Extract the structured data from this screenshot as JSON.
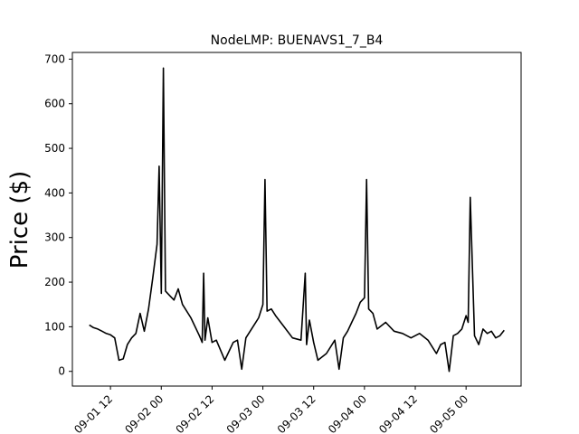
{
  "chart_data": {
    "type": "line",
    "title": "NodeLMP: BUENAVS1_7_B4",
    "xlabel": "",
    "ylabel": "Price ($)",
    "ylim": [
      -33,
      715
    ],
    "xlim": [
      "2019-09-01 03:00",
      "2019-09-05 13:00"
    ],
    "yticks": [
      0,
      100,
      200,
      300,
      400,
      500,
      600,
      700
    ],
    "xticks": [
      {
        "at": "2019-09-01 12:00",
        "label": "09-01 12"
      },
      {
        "at": "2019-09-02 00:00",
        "label": "09-02 00"
      },
      {
        "at": "2019-09-02 12:00",
        "label": "09-02 12"
      },
      {
        "at": "2019-09-03 00:00",
        "label": "09-03 00"
      },
      {
        "at": "2019-09-03 12:00",
        "label": "09-03 12"
      },
      {
        "at": "2019-09-04 00:00",
        "label": "09-04 00"
      },
      {
        "at": "2019-09-04 12:00",
        "label": "09-04 12"
      },
      {
        "at": "2019-09-05 00:00",
        "label": "09-05 00"
      }
    ],
    "grid": false,
    "line_color": "#000000",
    "series": [
      {
        "x": [
          "2019-09-01 07:00",
          "2019-09-01 08:00",
          "2019-09-01 09:00",
          "2019-09-01 10:00",
          "2019-09-01 11:00",
          "2019-09-01 12:00",
          "2019-09-01 13:00",
          "2019-09-01 14:00",
          "2019-09-01 15:00",
          "2019-09-01 16:00",
          "2019-09-01 17:00",
          "2019-09-01 18:00",
          "2019-09-01 19:00",
          "2019-09-01 20:00",
          "2019-09-01 21:00",
          "2019-09-01 22:00",
          "2019-09-01 23:00",
          "2019-09-01 23:30",
          "2019-09-02 00:00",
          "2019-09-02 00:30",
          "2019-09-02 01:00",
          "2019-09-02 02:00",
          "2019-09-02 03:00",
          "2019-09-02 04:00",
          "2019-09-02 05:00",
          "2019-09-02 07:00",
          "2019-09-02 09:00",
          "2019-09-02 09:40",
          "2019-09-02 10:00",
          "2019-09-02 10:20",
          "2019-09-02 11:00",
          "2019-09-02 12:00",
          "2019-09-02 13:00",
          "2019-09-02 15:00",
          "2019-09-02 17:00",
          "2019-09-02 18:00",
          "2019-09-02 19:00",
          "2019-09-02 20:00",
          "2019-09-02 21:00",
          "2019-09-02 22:00",
          "2019-09-02 23:00",
          "2019-09-03 00:00",
          "2019-09-03 00:30",
          "2019-09-03 01:00",
          "2019-09-03 02:00",
          "2019-09-03 03:00",
          "2019-09-03 05:00",
          "2019-09-03 07:00",
          "2019-09-03 09:00",
          "2019-09-03 10:00",
          "2019-09-03 10:20",
          "2019-09-03 11:00",
          "2019-09-03 12:00",
          "2019-09-03 13:00",
          "2019-09-03 15:00",
          "2019-09-03 17:00",
          "2019-09-03 18:00",
          "2019-09-03 19:00",
          "2019-09-03 20:00",
          "2019-09-03 21:00",
          "2019-09-03 22:00",
          "2019-09-03 23:00",
          "2019-09-04 00:00",
          "2019-09-04 00:30",
          "2019-09-04 01:00",
          "2019-09-04 02:00",
          "2019-09-04 03:00",
          "2019-09-04 05:00",
          "2019-09-04 07:00",
          "2019-09-04 09:00",
          "2019-09-04 11:00",
          "2019-09-04 13:00",
          "2019-09-04 15:00",
          "2019-09-04 17:00",
          "2019-09-04 18:00",
          "2019-09-04 19:00",
          "2019-09-04 20:00",
          "2019-09-04 21:00",
          "2019-09-04 22:00",
          "2019-09-04 23:00",
          "2019-09-05 00:00",
          "2019-09-05 00:30",
          "2019-09-05 01:00",
          "2019-09-05 02:00",
          "2019-09-05 03:00",
          "2019-09-05 04:00",
          "2019-09-05 05:00",
          "2019-09-05 06:00",
          "2019-09-05 07:00",
          "2019-09-05 08:00",
          "2019-09-05 09:00"
        ],
        "values": [
          104,
          98,
          95,
          90,
          85,
          82,
          75,
          25,
          28,
          60,
          75,
          85,
          130,
          90,
          140,
          210,
          285,
          460,
          175,
          680,
          180,
          170,
          160,
          185,
          150,
          120,
          80,
          65,
          220,
          70,
          120,
          65,
          70,
          25,
          65,
          70,
          5,
          75,
          90,
          105,
          120,
          150,
          430,
          135,
          140,
          125,
          100,
          75,
          70,
          220,
          60,
          115,
          65,
          25,
          40,
          70,
          5,
          75,
          90,
          110,
          130,
          155,
          165,
          430,
          140,
          130,
          95,
          110,
          90,
          85,
          75,
          85,
          70,
          40,
          60,
          65,
          0,
          80,
          85,
          95,
          125,
          110,
          390,
          80,
          60,
          95,
          85,
          90,
          75,
          80,
          92
        ]
      }
    ]
  }
}
